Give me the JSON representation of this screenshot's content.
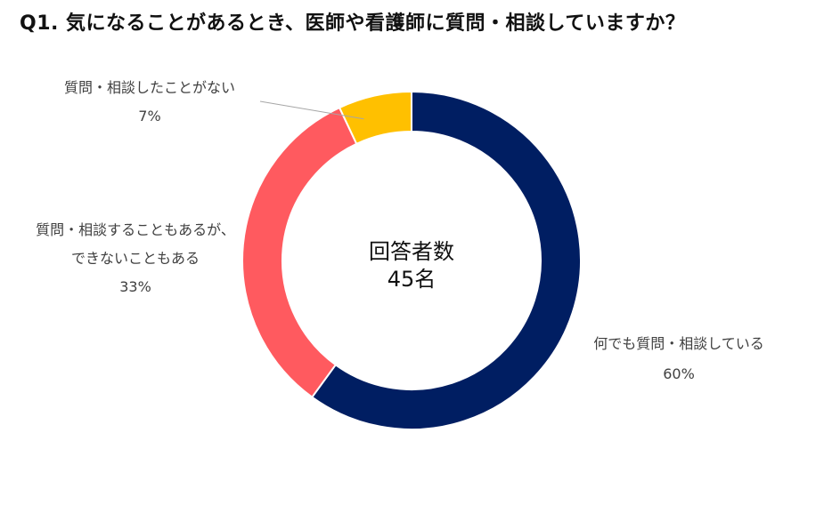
{
  "chart_data": {
    "type": "pie",
    "title": "Q1. 気になることがあるとき、医師や看護師に質問・相談していますか？",
    "center_text": {
      "line1": "回答者数",
      "line2": "45名"
    },
    "slices": [
      {
        "label_lines": [
          "何でも質問・相談している"
        ],
        "value_text": "60%",
        "value": 60,
        "color": "#001E62"
      },
      {
        "label_lines": [
          "質問・相談することもあるが、",
          "できないこともある"
        ],
        "value_text": "33%",
        "value": 33,
        "color": "#FF5A5F"
      },
      {
        "label_lines": [
          "質問・相談したことがない"
        ],
        "value_text": "7%",
        "value": 7,
        "color": "#FFC000"
      }
    ],
    "legend": "none",
    "grid": false
  }
}
